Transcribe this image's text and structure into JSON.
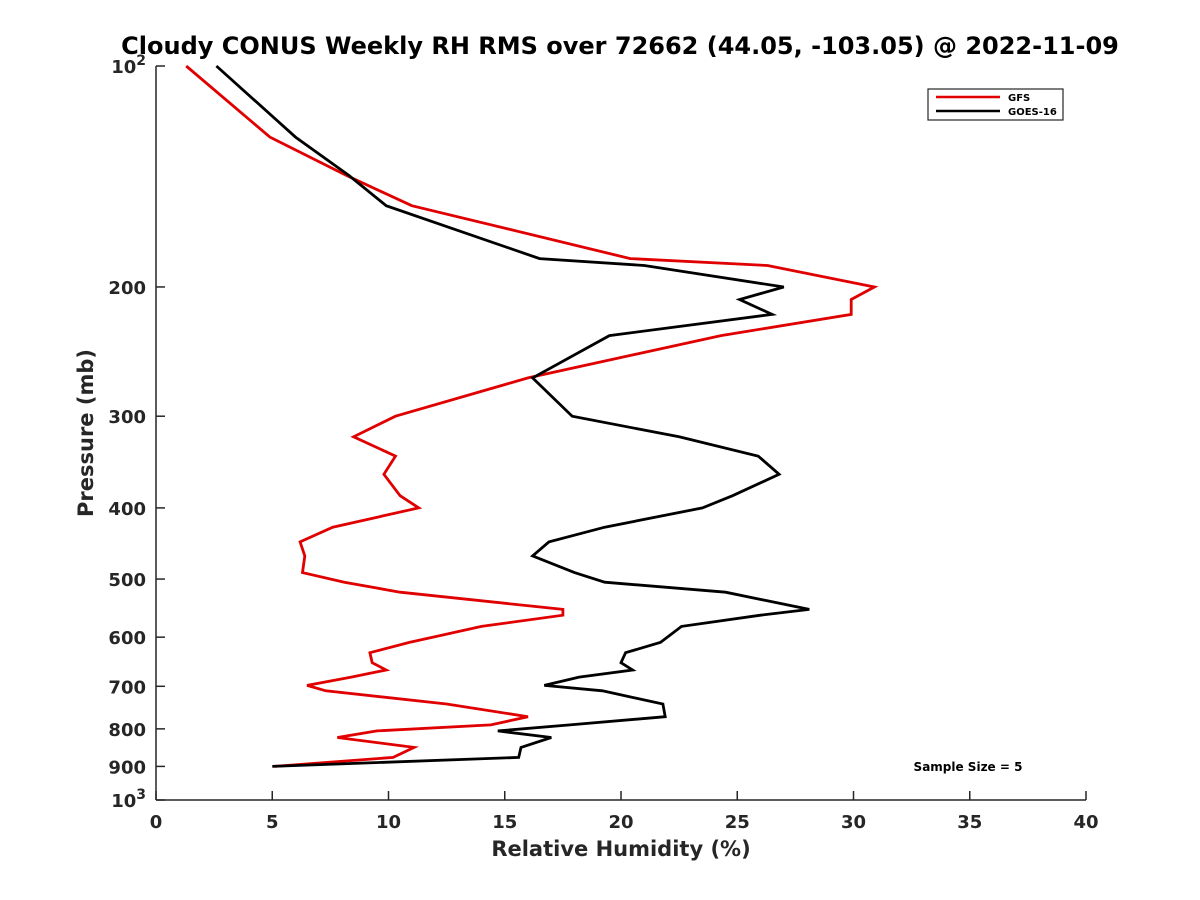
{
  "chart_data": {
    "type": "line",
    "title": "Cloudy CONUS Weekly RH RMS over 72662 (44.05, -103.05) @ 2022-11-09",
    "xlabel": "Relative Humidity (%)",
    "ylabel": "Pressure (mb)",
    "xlim": [
      0,
      40
    ],
    "ylim": [
      100,
      1000
    ],
    "y_scale": "log",
    "y_reversed": true,
    "grid": false,
    "legend_position": "top-right",
    "x_ticks": [
      0,
      5,
      10,
      15,
      20,
      25,
      30,
      35,
      40
    ],
    "x_tick_labels": [
      "0",
      "5",
      "10",
      "15",
      "20",
      "25",
      "30",
      "35",
      "40"
    ],
    "y_ticks": [
      100,
      200,
      300,
      400,
      500,
      600,
      700,
      800,
      900,
      1000
    ],
    "y_tick_labels": [
      {
        "base": "10",
        "exp": "2"
      },
      {
        "base": "200",
        "exp": ""
      },
      {
        "base": "300",
        "exp": ""
      },
      {
        "base": "400",
        "exp": ""
      },
      {
        "base": "500",
        "exp": ""
      },
      {
        "base": "600",
        "exp": ""
      },
      {
        "base": "700",
        "exp": ""
      },
      {
        "base": "800",
        "exp": ""
      },
      {
        "base": "900",
        "exp": ""
      },
      {
        "base": "10",
        "exp": "3"
      }
    ],
    "series": [
      {
        "name": "GFS",
        "color": "#e00000",
        "points": [
          [
            1.3,
            100
          ],
          [
            4.9,
            125
          ],
          [
            8.2,
            141
          ],
          [
            11.0,
            155
          ],
          [
            20.4,
            183
          ],
          [
            26.3,
            187
          ],
          [
            30.9,
            200
          ],
          [
            29.9,
            208
          ],
          [
            29.9,
            218
          ],
          [
            24.3,
            233
          ],
          [
            16.0,
            266
          ],
          [
            10.3,
            300
          ],
          [
            8.5,
            320
          ],
          [
            10.3,
            340
          ],
          [
            9.8,
            360
          ],
          [
            10.5,
            385
          ],
          [
            11.3,
            400
          ],
          [
            7.6,
            425
          ],
          [
            6.2,
            445
          ],
          [
            6.4,
            465
          ],
          [
            6.3,
            490
          ],
          [
            8.1,
            505
          ],
          [
            10.5,
            521
          ],
          [
            17.5,
            550
          ],
          [
            17.5,
            560
          ],
          [
            14.0,
            580
          ],
          [
            10.9,
            610
          ],
          [
            9.2,
            630
          ],
          [
            9.3,
            650
          ],
          [
            9.9,
            665
          ],
          [
            8.4,
            680
          ],
          [
            6.5,
            698
          ],
          [
            7.3,
            710
          ],
          [
            12.5,
            740
          ],
          [
            16.0,
            770
          ],
          [
            14.4,
            790
          ],
          [
            9.5,
            805
          ],
          [
            7.8,
            822
          ],
          [
            11.1,
            848
          ],
          [
            10.2,
            875
          ],
          [
            5.1,
            900
          ]
        ]
      },
      {
        "name": "GOES-16",
        "color": "#000000",
        "points": [
          [
            2.6,
            100
          ],
          [
            6.0,
            125
          ],
          [
            8.3,
            141
          ],
          [
            9.9,
            155
          ],
          [
            16.5,
            183
          ],
          [
            21.0,
            187
          ],
          [
            27.0,
            200
          ],
          [
            25.1,
            208
          ],
          [
            26.5,
            218
          ],
          [
            19.5,
            233
          ],
          [
            16.2,
            266
          ],
          [
            17.9,
            300
          ],
          [
            22.5,
            320
          ],
          [
            25.9,
            340
          ],
          [
            26.8,
            360
          ],
          [
            24.8,
            385
          ],
          [
            23.5,
            400
          ],
          [
            19.3,
            425
          ],
          [
            16.9,
            445
          ],
          [
            16.2,
            465
          ],
          [
            18.0,
            490
          ],
          [
            19.3,
            505
          ],
          [
            24.5,
            521
          ],
          [
            28.1,
            550
          ],
          [
            26.0,
            560
          ],
          [
            22.6,
            580
          ],
          [
            21.7,
            610
          ],
          [
            20.2,
            630
          ],
          [
            20.0,
            650
          ],
          [
            20.5,
            665
          ],
          [
            18.2,
            680
          ],
          [
            16.7,
            698
          ],
          [
            19.2,
            710
          ],
          [
            21.8,
            740
          ],
          [
            21.9,
            770
          ],
          [
            17.8,
            790
          ],
          [
            14.7,
            805
          ],
          [
            17.0,
            822
          ],
          [
            15.7,
            848
          ],
          [
            15.6,
            875
          ],
          [
            5.0,
            900
          ]
        ]
      }
    ],
    "annotations": [
      {
        "text": "Sample Size = 5"
      }
    ]
  }
}
